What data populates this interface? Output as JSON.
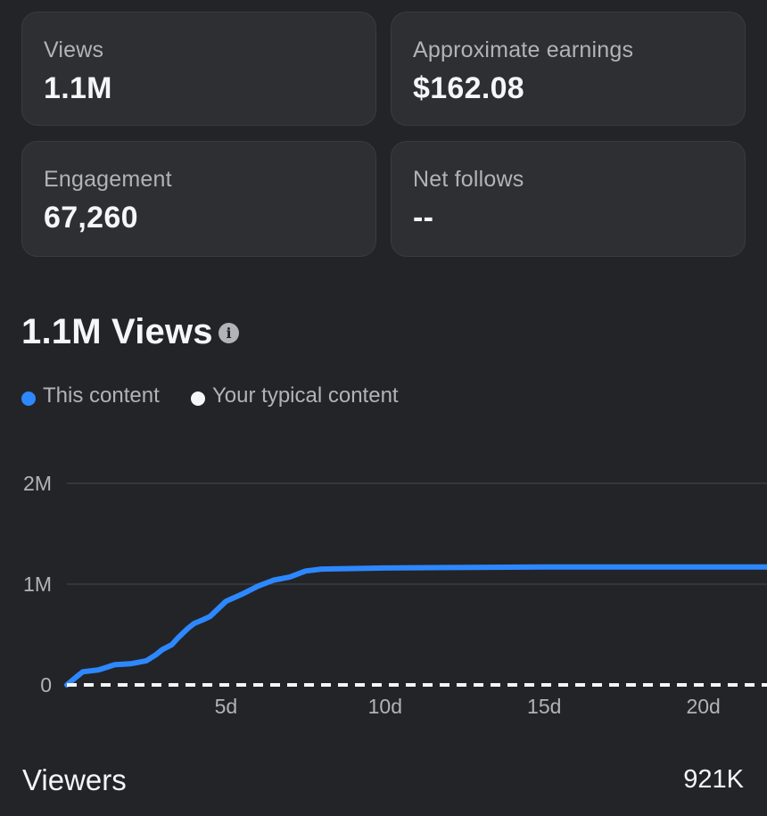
{
  "metrics": {
    "views": {
      "label": "Views",
      "value": "1.1M"
    },
    "earnings": {
      "label": "Approximate earnings",
      "value": "$162.08"
    },
    "engagement": {
      "label": "Engagement",
      "value": "67,260"
    },
    "follows": {
      "label": "Net follows",
      "value": "--"
    }
  },
  "section": {
    "title": "1.1M Views",
    "info_icon": "info-icon"
  },
  "legend": [
    {
      "label": "This content",
      "color": "#2d88ff"
    },
    {
      "label": "Your typical content",
      "color": "#f5f6f7"
    }
  ],
  "chart_data": {
    "type": "line",
    "title": "",
    "xlabel": "",
    "ylabel": "",
    "x_unit": "days",
    "xlim": [
      0,
      22
    ],
    "ylim": [
      0,
      2000000
    ],
    "x_ticks": [
      {
        "value": 5,
        "label": "5d"
      },
      {
        "value": 10,
        "label": "10d"
      },
      {
        "value": 15,
        "label": "15d"
      },
      {
        "value": 20,
        "label": "20d"
      }
    ],
    "y_ticks": [
      {
        "value": 0,
        "label": "0"
      },
      {
        "value": 1000000,
        "label": "1M"
      },
      {
        "value": 2000000,
        "label": "2M"
      }
    ],
    "grid": true,
    "series": [
      {
        "name": "This content",
        "color": "#2d88ff",
        "style": "solid",
        "x": [
          0,
          0.3,
          0.5,
          1.0,
          1.5,
          2.0,
          2.5,
          2.8,
          3.0,
          3.3,
          3.5,
          3.8,
          4.0,
          4.3,
          4.5,
          5.0,
          5.5,
          6.0,
          6.5,
          7.0,
          7.5,
          8.0,
          9.0,
          10.0,
          12.0,
          15.0,
          20.0,
          22.0
        ],
        "y": [
          0,
          80000,
          130000,
          150000,
          200000,
          210000,
          240000,
          300000,
          350000,
          400000,
          470000,
          560000,
          610000,
          650000,
          680000,
          830000,
          900000,
          980000,
          1040000,
          1070000,
          1130000,
          1150000,
          1155000,
          1160000,
          1165000,
          1170000,
          1170000,
          1170000
        ]
      },
      {
        "name": "Your typical content",
        "color": "#f5f6f7",
        "style": "dashed",
        "x": [
          0,
          22
        ],
        "y": [
          0,
          0
        ]
      }
    ]
  },
  "footer": {
    "label": "Viewers",
    "value": "921K"
  }
}
